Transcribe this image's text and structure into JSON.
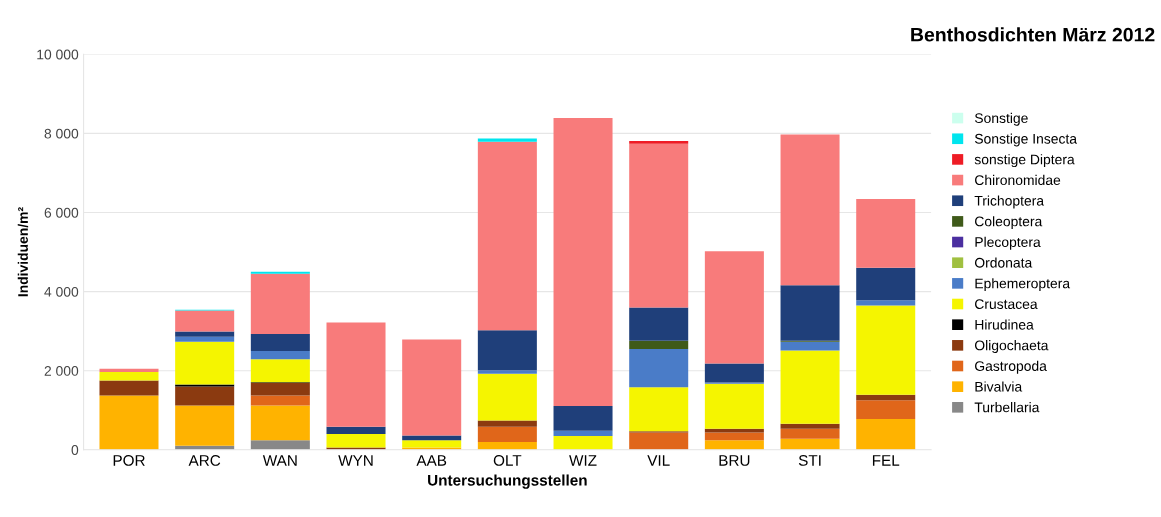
{
  "chart_data": {
    "type": "bar",
    "title": "Benthosdichten März 2012",
    "xlabel": "Untersuchungsstellen",
    "ylabel": "Individuen/m²",
    "categories": [
      "POR",
      "ARC",
      "WAN",
      "WYN",
      "AAB",
      "OLT",
      "WIZ",
      "VIL",
      "BRU",
      "STI",
      "FEL"
    ],
    "stacked": true,
    "grid": "y",
    "legend": "right",
    "ylim": [
      0,
      10000
    ],
    "yticks": [
      {
        "value": 0,
        "label": "0"
      },
      {
        "value": 2000,
        "label": "2 000"
      },
      {
        "value": 4000,
        "label": "4 000"
      },
      {
        "value": 6000,
        "label": "6 000"
      },
      {
        "value": 8000,
        "label": "8 000"
      },
      {
        "value": 10000,
        "label": "10 000"
      }
    ],
    "series": [
      {
        "name": "Turbellaria",
        "color": "#888888",
        "values": [
          0,
          100,
          240,
          0,
          0,
          0,
          0,
          0,
          0,
          0,
          0
        ]
      },
      {
        "name": "Bivalvia",
        "color": "#ffb300",
        "values": [
          1370,
          1020,
          880,
          0,
          60,
          200,
          null,
          null,
          240,
          280,
          780
        ]
      },
      {
        "name": "Gastropoda",
        "color": "#e0661a",
        "values": [
          0,
          0,
          250,
          0,
          0,
          380,
          0,
          440,
          200,
          250,
          470
        ]
      },
      {
        "name": "Oligochaeta",
        "color": "#8b3a10",
        "values": [
          380,
          480,
          320,
          60,
          0,
          160,
          0,
          30,
          90,
          130,
          140
        ]
      },
      {
        "name": "Hirudinea",
        "color": "#000000",
        "values": [
          0,
          50,
          20,
          0,
          0,
          0,
          0,
          0,
          0,
          0,
          0
        ]
      },
      {
        "name": "Crustacea",
        "color": "#f5f500",
        "values": [
          220,
          1080,
          580,
          340,
          180,
          1180,
          350,
          1110,
          1140,
          1850,
          2260
        ]
      },
      {
        "name": "Ephemeroptera",
        "color": "#4a7cc8",
        "values": [
          0,
          130,
          210,
          0,
          0,
          90,
          130,
          970,
          30,
          220,
          130
        ]
      },
      {
        "name": "Ordonata",
        "color": "#a0c040",
        "values": [
          0,
          0,
          0,
          0,
          0,
          0,
          0,
          0,
          0,
          0,
          0
        ]
      },
      {
        "name": "Plecoptera",
        "color": "#4b2fa0",
        "values": [
          0,
          0,
          0,
          0,
          0,
          0,
          0,
          0,
          0,
          0,
          0
        ]
      },
      {
        "name": "Coleoptera",
        "color": "#3f5a1a",
        "values": [
          0,
          0,
          0,
          0,
          0,
          0,
          0,
          210,
          0,
          30,
          0
        ]
      },
      {
        "name": "Trichoptera",
        "color": "#1f3f7a",
        "values": [
          0,
          130,
          430,
          180,
          120,
          1010,
          630,
          840,
          480,
          1400,
          820
        ]
      },
      {
        "name": "Chironomidae",
        "color": "#f87b7b",
        "values": [
          80,
          530,
          1520,
          2640,
          2430,
          4770,
          7280,
          4140,
          2840,
          3810,
          1740
        ]
      },
      {
        "name": "sonstige Diptera",
        "color": "#ee1c25",
        "values": [
          0,
          0,
          0,
          0,
          0,
          0,
          0,
          70,
          0,
          0,
          0
        ]
      },
      {
        "name": "Sonstige Insecta",
        "color": "#00e5ee",
        "values": [
          0,
          20,
          50,
          0,
          0,
          80,
          0,
          0,
          0,
          0,
          0
        ]
      },
      {
        "name": "Sonstige",
        "color": "#ccffee",
        "values": [
          0,
          0,
          0,
          0,
          0,
          0,
          0,
          0,
          0,
          0,
          0
        ]
      }
    ]
  }
}
